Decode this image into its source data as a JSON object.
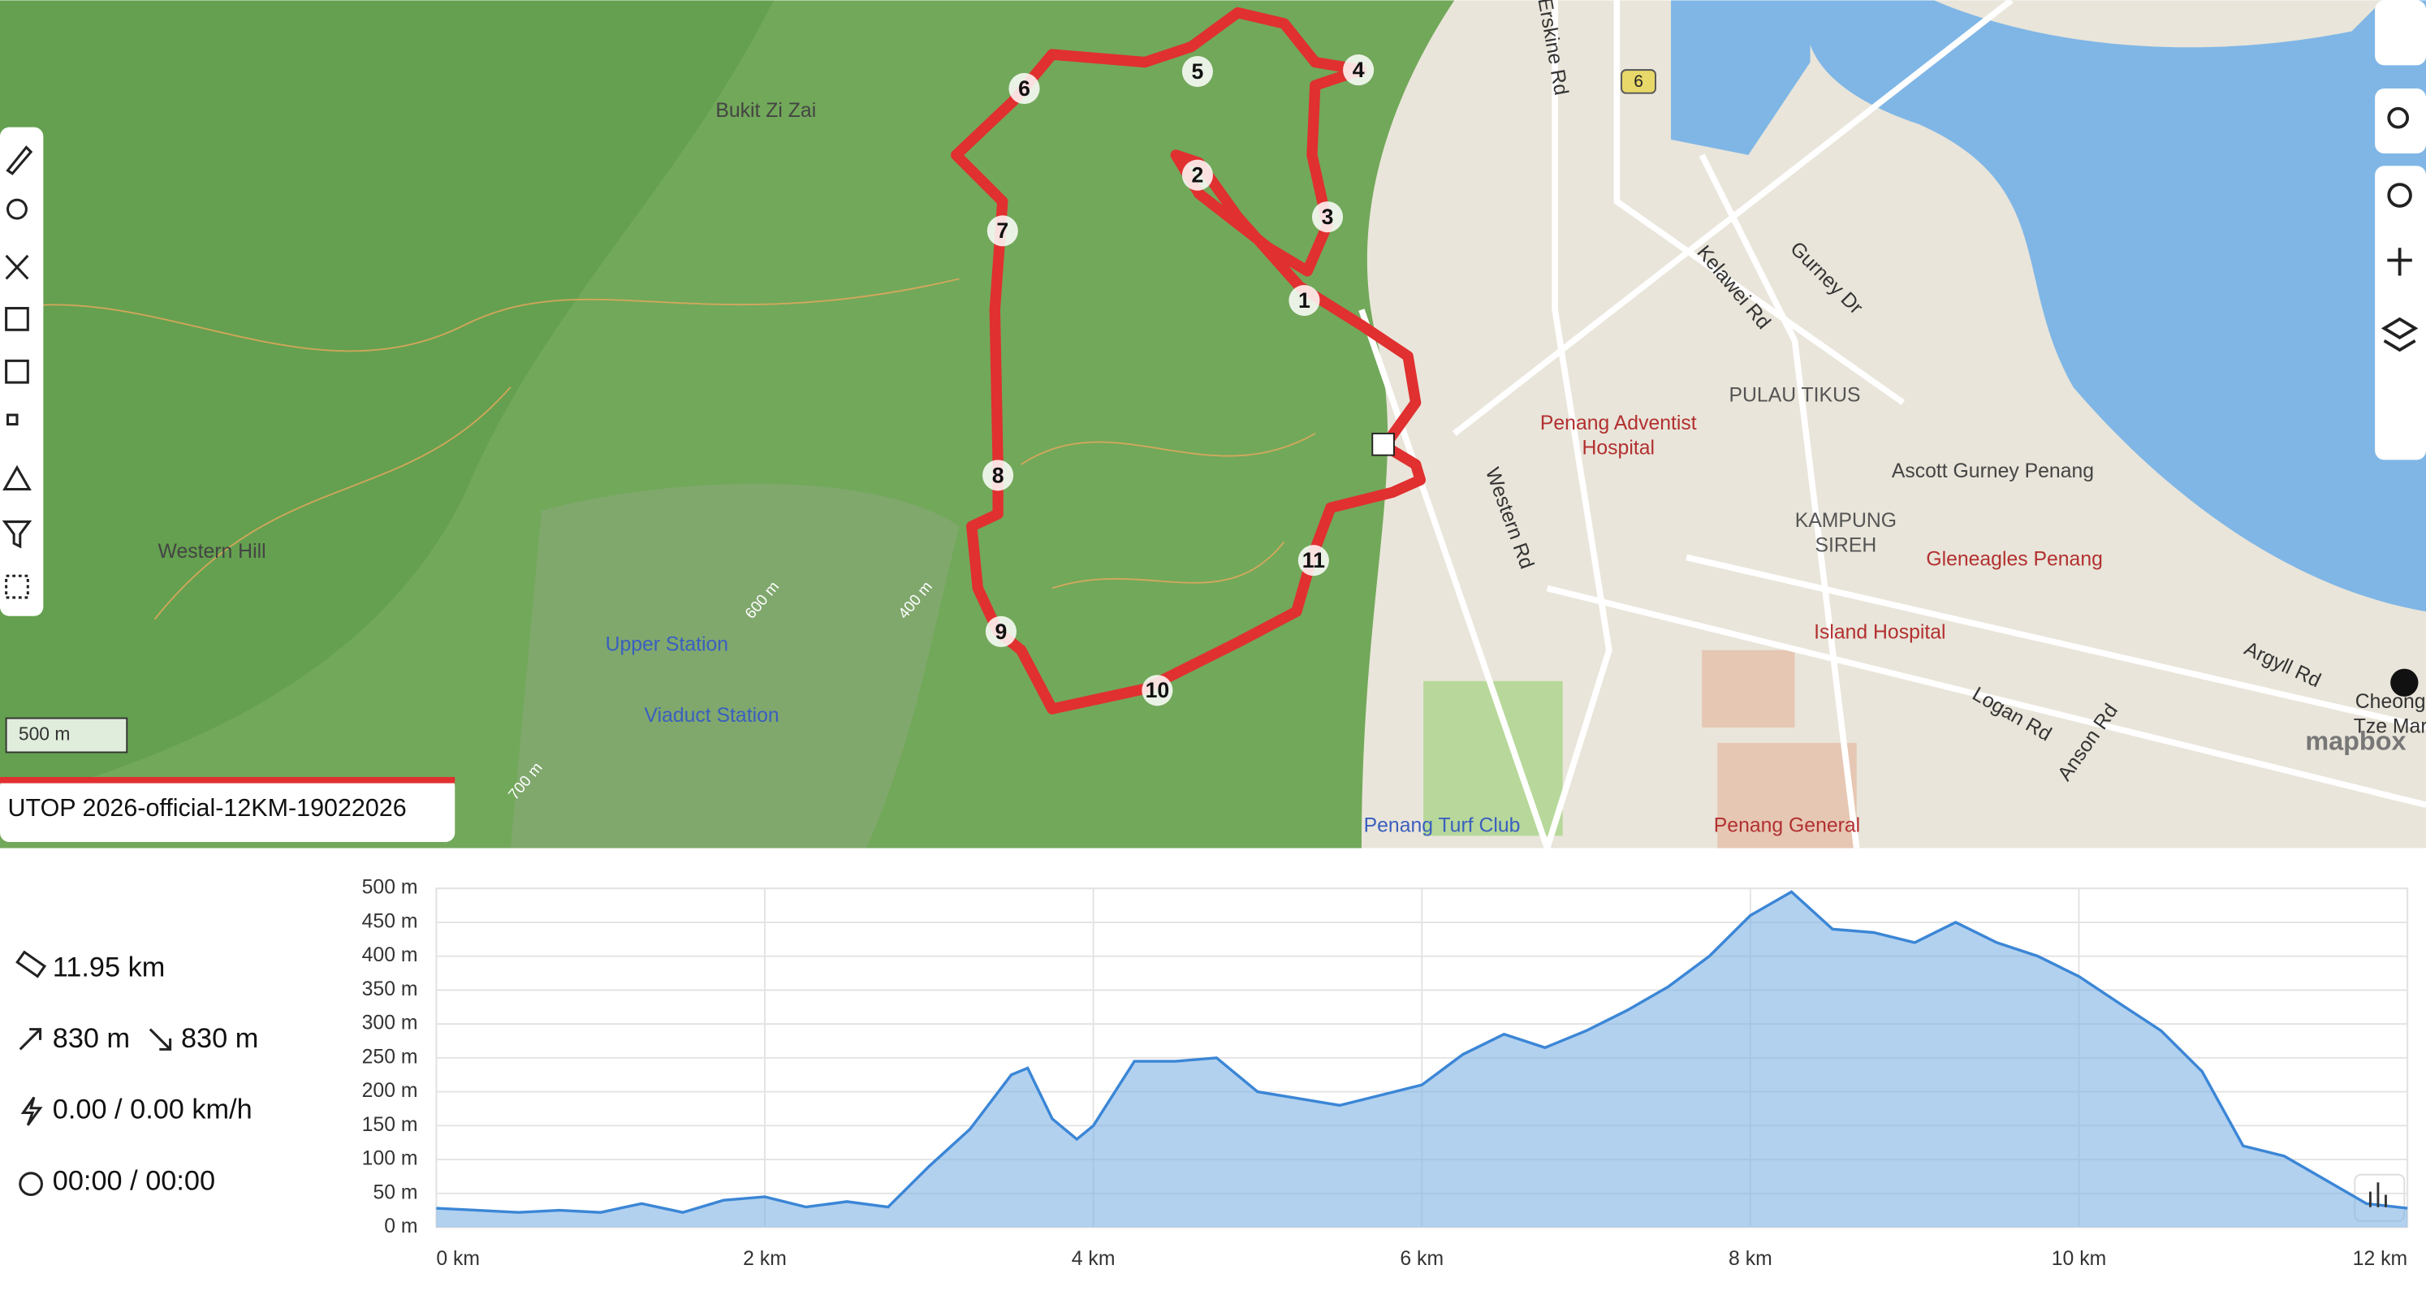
{
  "route_name": "UTOP 2026-official-12KM-19022026",
  "stats": {
    "distance": "11.95 km",
    "ascent": "830 m",
    "descent": "830 m",
    "speed": "0.00 / 0.00 km/h",
    "time": "00:00 / 00:00"
  },
  "map": {
    "scale": "500 m",
    "attribution": "mapbox",
    "road_shield": "6",
    "markers": [
      "1",
      "2",
      "3",
      "4",
      "5",
      "6",
      "7",
      "8",
      "9",
      "10",
      "11"
    ],
    "labels": [
      {
        "text": "Bukit Zi Zai"
      },
      {
        "text": "Western Hill"
      },
      {
        "text": "Upper Station"
      },
      {
        "text": "Viaduct Station"
      },
      {
        "text": "Erskine Rd"
      },
      {
        "text": "Kelawei Rd"
      },
      {
        "text": "Gurney Dr"
      },
      {
        "text": "PULAU TIKUS"
      },
      {
        "lines": [
          "Penang Adventist",
          "Hospital"
        ]
      },
      {
        "text": "Ascott Gurney Penang"
      },
      {
        "lines": [
          "KAMPUNG",
          "SIREH"
        ]
      },
      {
        "text": "Gleneagles Penang"
      },
      {
        "text": "Island Hospital"
      },
      {
        "text": "Western Rd"
      },
      {
        "text": "Argyll Rd"
      },
      {
        "text": "Logan Rd"
      },
      {
        "text": "Anson Rd"
      },
      {
        "text": "Penang General"
      },
      {
        "text": "Penang Turf Club"
      },
      {
        "text": "Cheong"
      },
      {
        "text": "Tze Mar"
      },
      {
        "text": "600 m"
      },
      {
        "text": "400 m"
      },
      {
        "text": "700 m"
      }
    ]
  },
  "elevation_chart": {
    "type": "area",
    "color": "#7fb2e5",
    "x": [
      0,
      0.25,
      0.5,
      0.75,
      1,
      1.25,
      1.5,
      1.75,
      2,
      2.25,
      2.5,
      2.75,
      3,
      3.25,
      3.5,
      3.6,
      3.75,
      3.9,
      4,
      4.25,
      4.5,
      4.75,
      5,
      5.25,
      5.5,
      5.75,
      6,
      6.25,
      6.5,
      6.75,
      7,
      7.25,
      7.5,
      7.75,
      8,
      8.25,
      8.5,
      8.75,
      9,
      9.25,
      9.5,
      9.75,
      10,
      10.25,
      10.5,
      10.75,
      11,
      11.25,
      11.5,
      11.75,
      12
    ],
    "values": [
      28,
      25,
      22,
      25,
      22,
      35,
      22,
      40,
      45,
      30,
      38,
      30,
      90,
      145,
      225,
      235,
      160,
      130,
      150,
      245,
      245,
      250,
      200,
      190,
      180,
      195,
      210,
      255,
      285,
      265,
      290,
      320,
      355,
      400,
      460,
      495,
      440,
      435,
      420,
      450,
      420,
      400,
      370,
      330,
      290,
      230,
      120,
      105,
      70,
      35,
      28
    ],
    "xlim": [
      0,
      12
    ],
    "ylim": [
      0,
      500
    ],
    "xticks": [
      {
        "value": 0,
        "label": "0 km"
      },
      {
        "value": 2,
        "label": "2 km"
      },
      {
        "value": 4,
        "label": "4 km"
      },
      {
        "value": 6,
        "label": "6 km"
      },
      {
        "value": 8,
        "label": "8 km"
      },
      {
        "value": 10,
        "label": "10 km"
      },
      {
        "value": 12,
        "label": "12 km"
      }
    ],
    "yticks": [
      {
        "value": 0,
        "label": "0 m"
      },
      {
        "value": 50,
        "label": "50 m"
      },
      {
        "value": 100,
        "label": "100 m"
      },
      {
        "value": 150,
        "label": "150 m"
      },
      {
        "value": 200,
        "label": "200 m"
      },
      {
        "value": 250,
        "label": "250 m"
      },
      {
        "value": 300,
        "label": "300 m"
      },
      {
        "value": 350,
        "label": "350 m"
      },
      {
        "value": 400,
        "label": "400 m"
      },
      {
        "value": 450,
        "label": "450 m"
      },
      {
        "value": 500,
        "label": "500 m"
      }
    ],
    "grid": true
  }
}
